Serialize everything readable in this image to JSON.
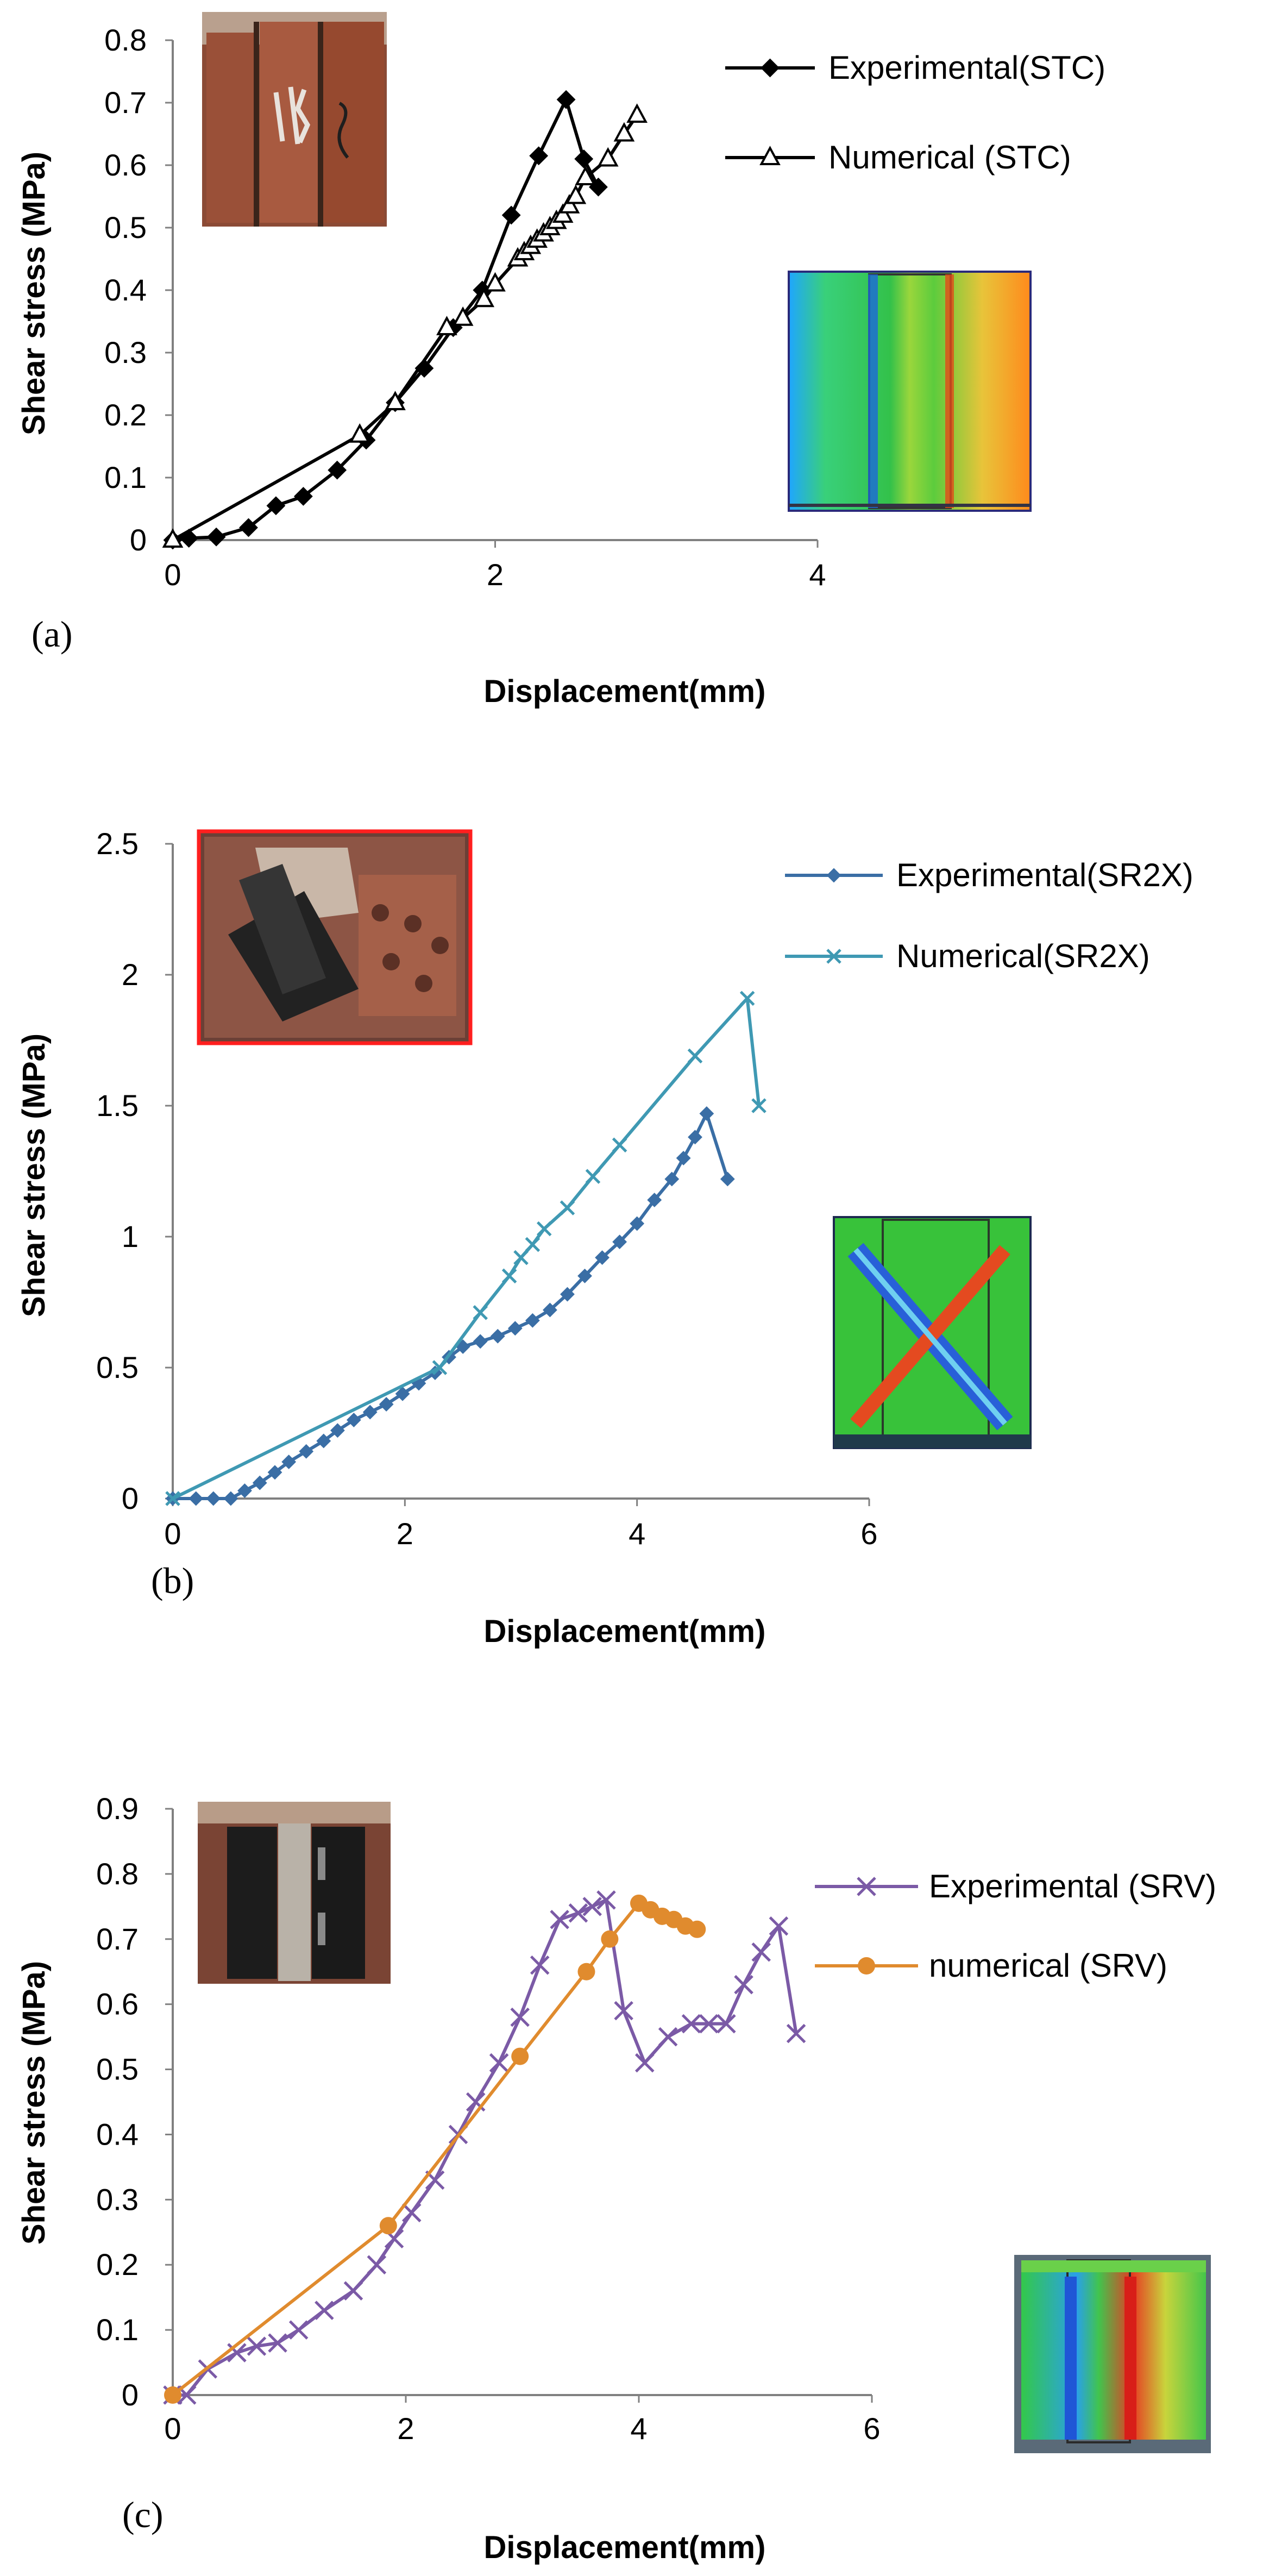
{
  "chart_data": [
    {
      "type": "line",
      "panel_label": "(a)",
      "xlabel": "Displacement(mm)",
      "ylabel": "Shear stress (MPa)",
      "xlim": [
        0,
        4
      ],
      "ylim": [
        0,
        0.8
      ],
      "xticks": [
        "0",
        "2",
        "4"
      ],
      "yticks": [
        "0",
        "0.1",
        "0.2",
        "0.3",
        "0.4",
        "0.5",
        "0.6",
        "0.7",
        "0.8"
      ],
      "grid": false,
      "legend": "top-right",
      "photo_inset": "top-left",
      "contour_inset": "right",
      "series": [
        {
          "name": "Experimental(STC)",
          "color": "#000000",
          "marker": "diamond",
          "x": [
            0,
            0.1,
            0.27,
            0.47,
            0.64,
            0.81,
            1.02,
            1.2,
            1.38,
            1.56,
            1.74,
            1.92,
            2.1,
            2.27,
            2.44,
            2.55,
            2.64
          ],
          "y": [
            0,
            0.003,
            0.005,
            0.02,
            0.055,
            0.07,
            0.112,
            0.16,
            0.22,
            0.275,
            0.34,
            0.4,
            0.52,
            0.615,
            0.705,
            0.61,
            0.565
          ]
        },
        {
          "name": "Numerical (STC)",
          "color": "#000000",
          "marker": "triangle",
          "x": [
            0,
            1.16,
            1.38,
            1.7,
            1.8,
            1.93,
            2.0,
            2.14,
            2.18,
            2.22,
            2.26,
            2.3,
            2.34,
            2.38,
            2.42,
            2.46,
            2.5,
            2.56,
            2.7,
            2.8,
            2.88
          ],
          "y": [
            0,
            0.168,
            0.22,
            0.34,
            0.355,
            0.385,
            0.41,
            0.45,
            0.46,
            0.47,
            0.48,
            0.49,
            0.5,
            0.51,
            0.52,
            0.535,
            0.55,
            0.58,
            0.61,
            0.65,
            0.68
          ]
        }
      ]
    },
    {
      "type": "line",
      "panel_label": "(b)",
      "xlabel": "Displacement(mm)",
      "ylabel": "Shear stress (MPa)",
      "xlim": [
        0,
        6
      ],
      "ylim": [
        0,
        2.5
      ],
      "xticks": [
        "0",
        "2",
        "4",
        "6"
      ],
      "yticks": [
        "0",
        "0.5",
        "1",
        "1.5",
        "2",
        "2.5"
      ],
      "grid": false,
      "legend": "top-right",
      "photo_inset": "top-left",
      "contour_inset": "right",
      "series": [
        {
          "name": "Experimental(SR2X)",
          "color": "#3a6ea5",
          "marker": "diamond",
          "x": [
            0,
            0.2,
            0.35,
            0.5,
            0.62,
            0.75,
            0.88,
            1.0,
            1.15,
            1.3,
            1.42,
            1.56,
            1.7,
            1.84,
            1.98,
            2.12,
            2.26,
            2.38,
            2.5,
            2.65,
            2.8,
            2.95,
            3.1,
            3.25,
            3.4,
            3.55,
            3.7,
            3.85,
            4.0,
            4.15,
            4.3,
            4.4,
            4.5,
            4.6,
            4.78
          ],
          "y": [
            0,
            0.0,
            0.0,
            0.0,
            0.03,
            0.06,
            0.1,
            0.14,
            0.18,
            0.22,
            0.26,
            0.3,
            0.33,
            0.36,
            0.4,
            0.44,
            0.48,
            0.54,
            0.58,
            0.6,
            0.62,
            0.65,
            0.68,
            0.72,
            0.78,
            0.85,
            0.92,
            0.98,
            1.05,
            1.14,
            1.22,
            1.3,
            1.38,
            1.47,
            1.22
          ]
        },
        {
          "name": "Numerical(SR2X)",
          "color": "#3f99b3",
          "marker": "x",
          "x": [
            0,
            2.3,
            2.65,
            2.9,
            3.0,
            3.1,
            3.2,
            3.4,
            3.62,
            3.85,
            4.5,
            4.95,
            5.05
          ],
          "y": [
            0,
            0.5,
            0.71,
            0.85,
            0.92,
            0.97,
            1.03,
            1.11,
            1.23,
            1.35,
            1.69,
            1.91,
            1.5
          ]
        }
      ]
    },
    {
      "type": "line",
      "panel_label": "(c)",
      "xlabel": "Displacement(mm)",
      "ylabel": "Shear stress (MPa)",
      "xlim": [
        0,
        6
      ],
      "ylim": [
        0,
        0.9
      ],
      "xticks": [
        "0",
        "2",
        "4",
        "6"
      ],
      "yticks": [
        "0",
        "0.1",
        "0.2",
        "0.3",
        "0.4",
        "0.5",
        "0.6",
        "0.7",
        "0.8",
        "0.9"
      ],
      "grid": false,
      "legend": "top-right",
      "photo_inset": "top-left",
      "contour_inset": "right",
      "series": [
        {
          "name": "Experimental (SRV)",
          "color": "#7b5aa6",
          "marker": "x",
          "x": [
            0,
            0.12,
            0.3,
            0.55,
            0.72,
            0.9,
            1.08,
            1.3,
            1.55,
            1.75,
            1.9,
            2.05,
            2.25,
            2.45,
            2.6,
            2.8,
            2.98,
            3.15,
            3.32,
            3.48,
            3.6,
            3.72,
            3.87,
            4.05,
            4.25,
            4.45,
            4.6,
            4.75,
            4.9,
            5.05,
            5.2,
            5.35
          ],
          "y": [
            0,
            0.0,
            0.04,
            0.065,
            0.075,
            0.08,
            0.1,
            0.13,
            0.16,
            0.2,
            0.24,
            0.28,
            0.33,
            0.4,
            0.45,
            0.51,
            0.58,
            0.66,
            0.73,
            0.74,
            0.75,
            0.76,
            0.59,
            0.51,
            0.55,
            0.57,
            0.57,
            0.57,
            0.63,
            0.68,
            0.72,
            0.555
          ]
        },
        {
          "name": "numerical (SRV)",
          "color": "#e08b2e",
          "marker": "circle",
          "x": [
            0,
            1.85,
            2.98,
            3.55,
            3.75,
            4.0,
            4.1,
            4.2,
            4.3,
            4.4,
            4.5
          ],
          "y": [
            0,
            0.26,
            0.52,
            0.65,
            0.7,
            0.755,
            0.745,
            0.735,
            0.73,
            0.72,
            0.715
          ]
        }
      ]
    }
  ]
}
